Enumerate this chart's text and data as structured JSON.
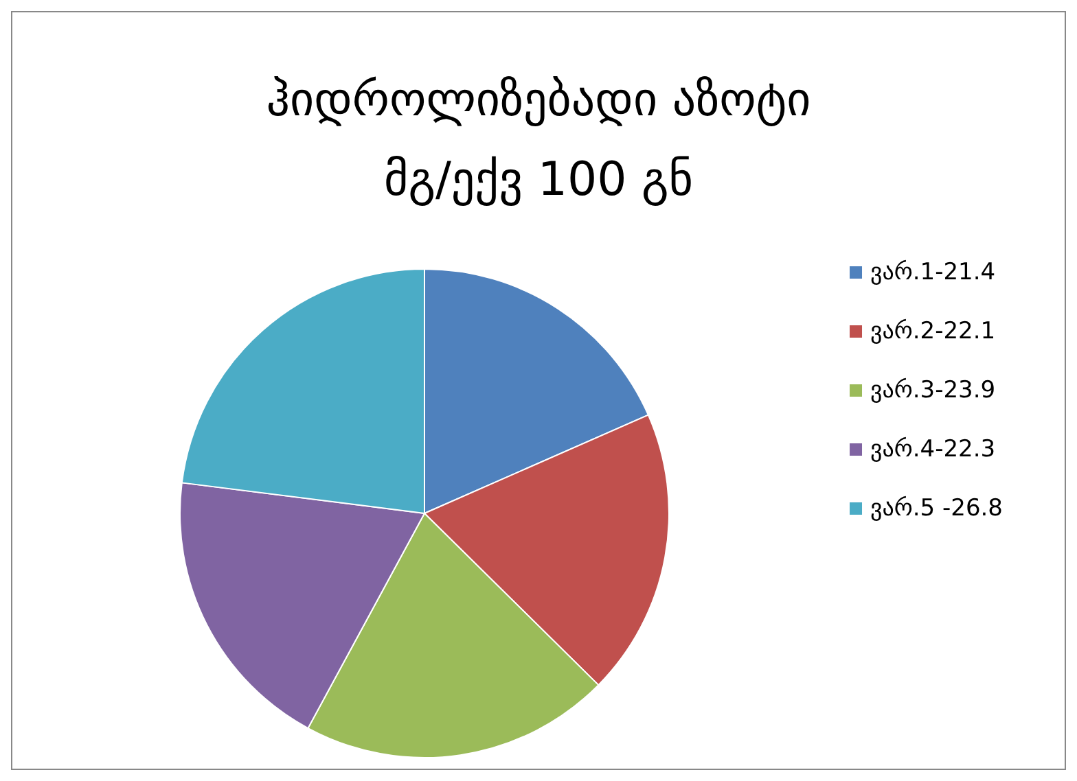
{
  "chart_data": {
    "type": "pie",
    "title": "ჰიდროლიზებადი აზოტი\nმგ/ექვ 100 გნ",
    "categories": [
      "ვარ.1-21.4",
      "ვარ.2-22.1",
      "ვარ.3-23.9",
      "ვარ.4-22.3",
      "ვარ.5 -26.8"
    ],
    "values": [
      18.4,
      19.0,
      20.5,
      19.1,
      23.0
    ],
    "colors": [
      "#4f81bd",
      "#c0504d",
      "#9bbb59",
      "#8064a2",
      "#4bacc6"
    ],
    "legend": "right"
  }
}
